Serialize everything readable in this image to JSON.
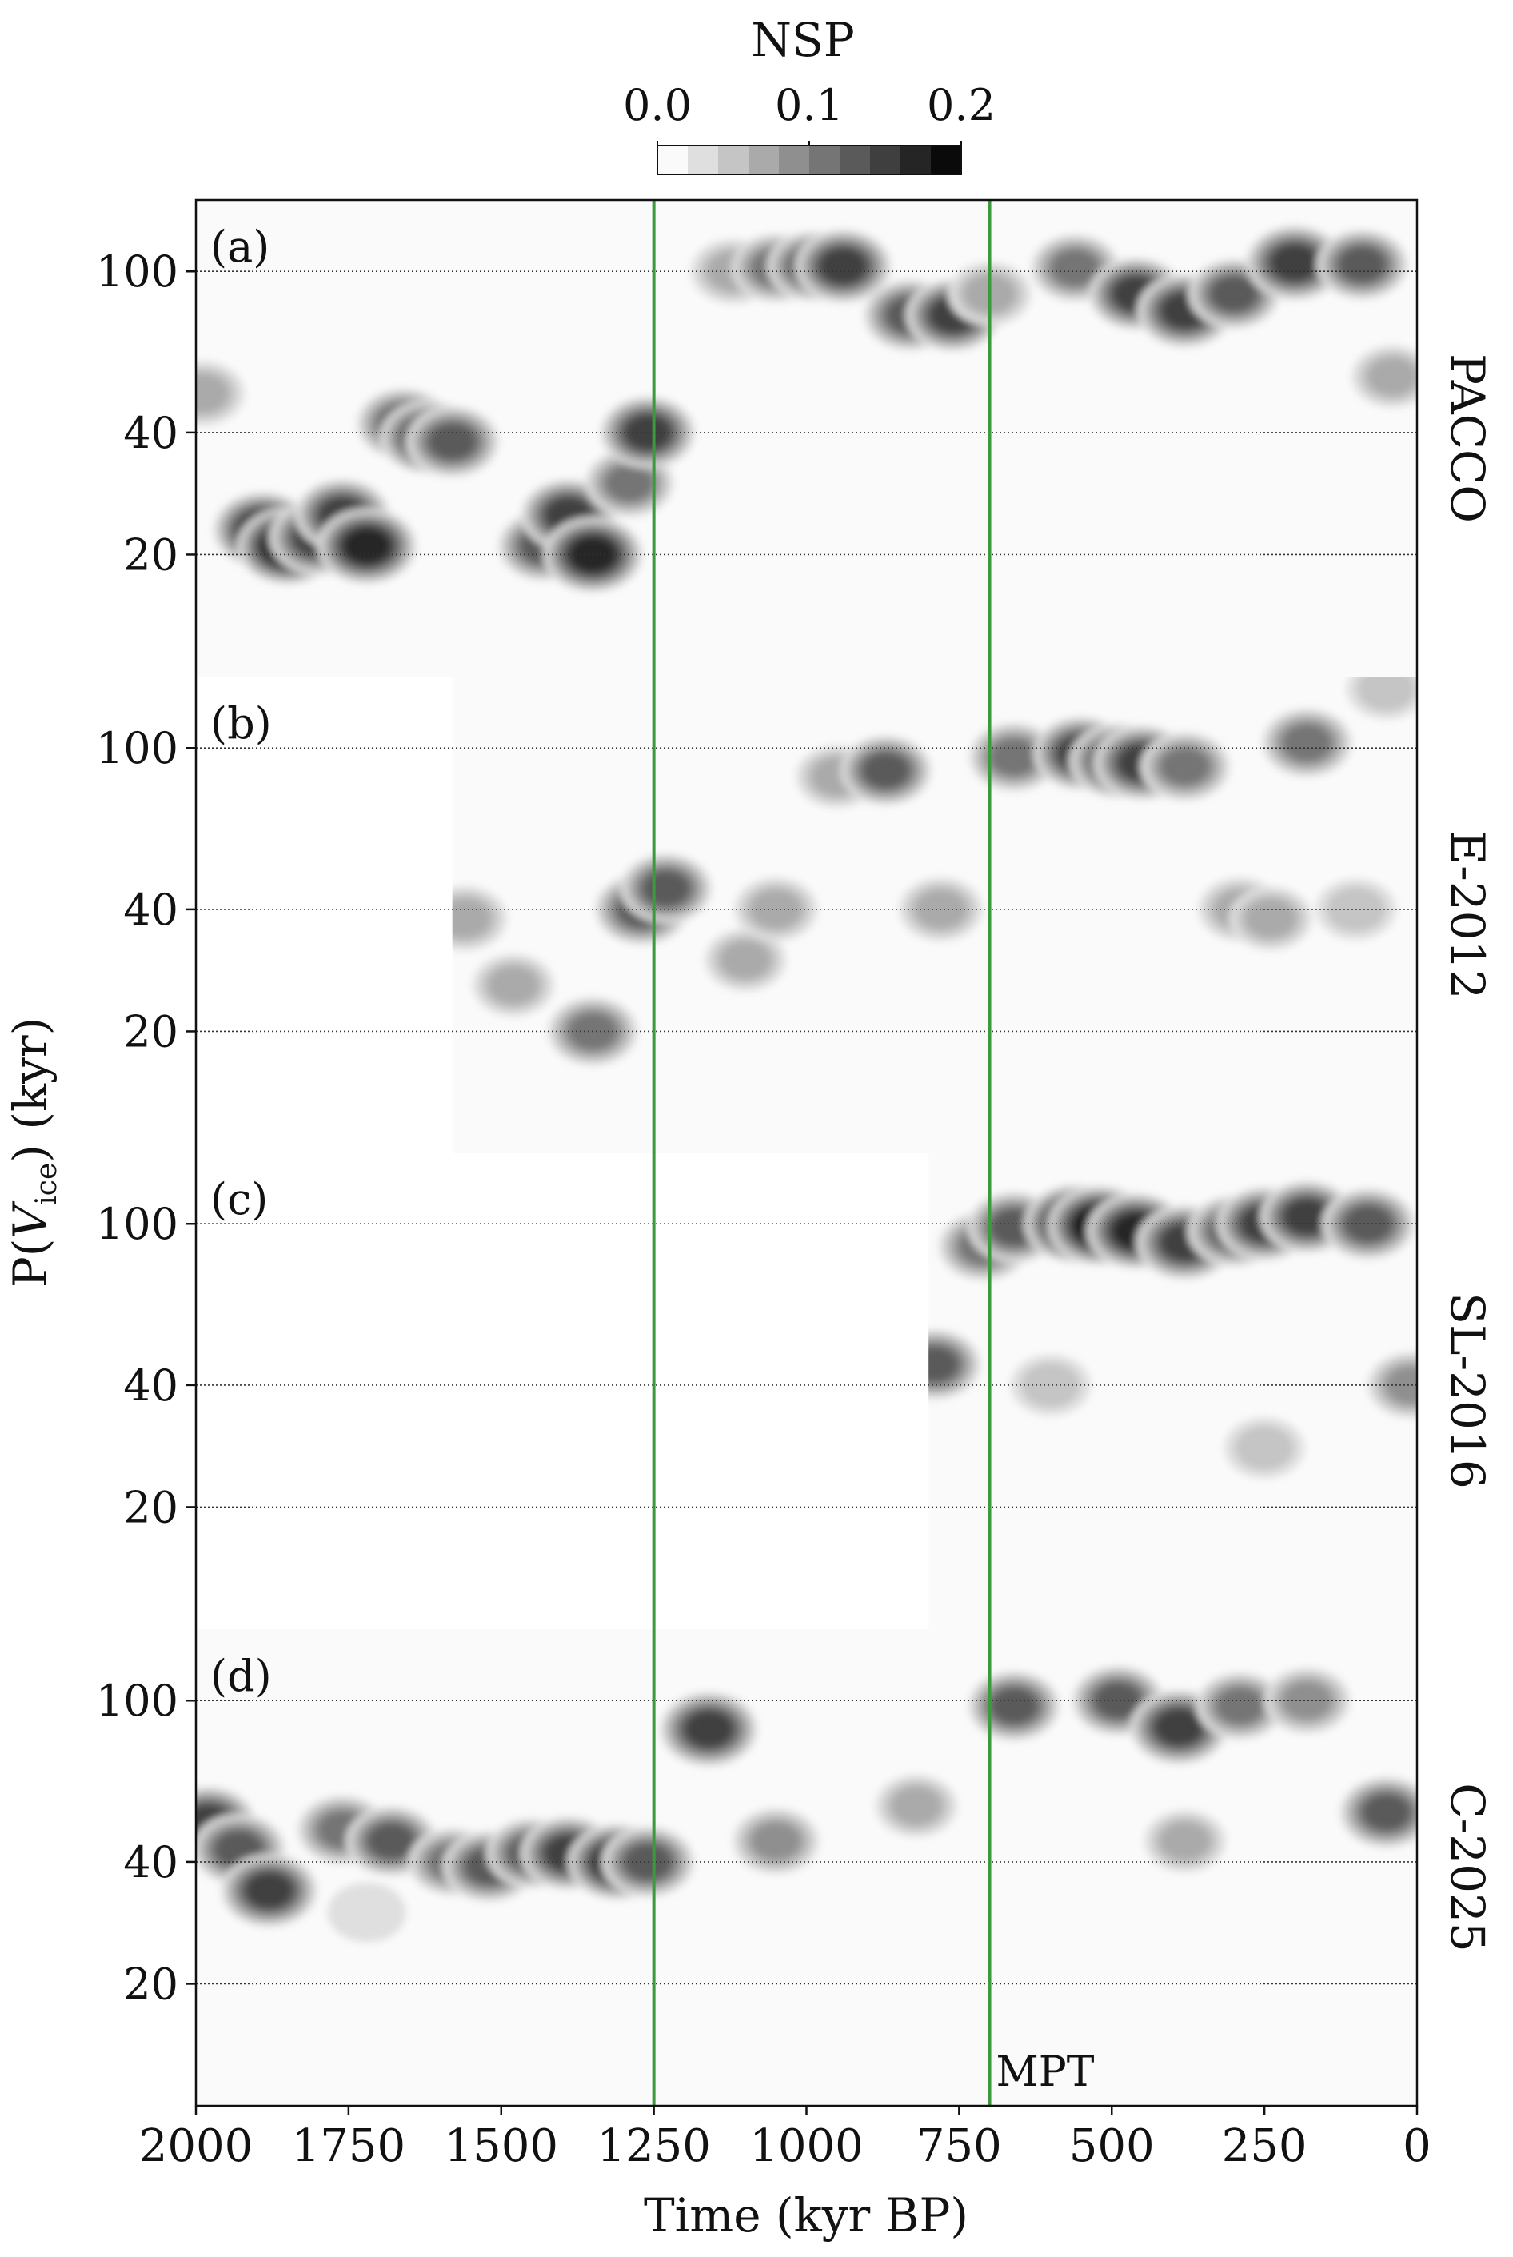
{
  "chart_data": {
    "type": "heatmap",
    "colorbar": {
      "title": "NSP",
      "tick_labels": [
        "0.0",
        "0.1",
        "0.2"
      ],
      "ticks": [
        0.0,
        0.1,
        0.2
      ],
      "range": [
        0.0,
        0.2
      ],
      "levels": 10
    },
    "xlabel": "Time (kyr BP)",
    "xlim": [
      2000,
      0
    ],
    "x_ticks": [
      2000,
      1750,
      1500,
      1250,
      1000,
      750,
      500,
      250,
      0
    ],
    "x_tick_labels": [
      "2000",
      "1750",
      "1500",
      "1250",
      "1000",
      "750",
      "500",
      "250",
      "0"
    ],
    "ylabel_parts": {
      "pre": "P(",
      "var": "V",
      "sub": "ice",
      "post": ") (kyr)"
    },
    "y_scale": "log",
    "ylim": [
      10,
      150
    ],
    "y_ticks": [
      20,
      40,
      100
    ],
    "y_tick_labels": [
      "20",
      "40",
      "100"
    ],
    "grid": "horizontal dotted at 20, 40, 100",
    "vlines": [
      {
        "x": 1250,
        "color": "#3c9a3c"
      },
      {
        "x": 700,
        "color": "#3c9a3c",
        "label": "MPT"
      }
    ],
    "panels": [
      {
        "tag": "(a)",
        "name": "PACCO",
        "x_range": [
          2000,
          0
        ],
        "blobs": [
          {
            "t": 1890,
            "p": 23,
            "v": 0.17
          },
          {
            "t": 1850,
            "p": 21,
            "v": 0.18
          },
          {
            "t": 1800,
            "p": 22,
            "v": 0.16
          },
          {
            "t": 1760,
            "p": 25,
            "v": 0.14
          },
          {
            "t": 1720,
            "p": 21,
            "v": 0.17
          },
          {
            "t": 1660,
            "p": 42,
            "v": 0.13
          },
          {
            "t": 1620,
            "p": 39,
            "v": 0.15
          },
          {
            "t": 1580,
            "p": 38,
            "v": 0.13
          },
          {
            "t": 1430,
            "p": 21,
            "v": 0.12
          },
          {
            "t": 1390,
            "p": 25,
            "v": 0.14
          },
          {
            "t": 1350,
            "p": 20,
            "v": 0.17
          },
          {
            "t": 1290,
            "p": 30,
            "v": 0.1
          },
          {
            "t": 1260,
            "p": 40,
            "v": 0.14
          },
          {
            "t": 1120,
            "p": 100,
            "v": 0.08
          },
          {
            "t": 1050,
            "p": 102,
            "v": 0.11
          },
          {
            "t": 990,
            "p": 103,
            "v": 0.12
          },
          {
            "t": 940,
            "p": 103,
            "v": 0.15
          },
          {
            "t": 830,
            "p": 78,
            "v": 0.13
          },
          {
            "t": 760,
            "p": 78,
            "v": 0.14
          },
          {
            "t": 700,
            "p": 88,
            "v": 0.07
          },
          {
            "t": 560,
            "p": 102,
            "v": 0.1
          },
          {
            "t": 460,
            "p": 88,
            "v": 0.14
          },
          {
            "t": 380,
            "p": 80,
            "v": 0.15
          },
          {
            "t": 300,
            "p": 88,
            "v": 0.12
          },
          {
            "t": 200,
            "p": 105,
            "v": 0.16
          },
          {
            "t": 90,
            "p": 104,
            "v": 0.12
          },
          {
            "t": 40,
            "p": 55,
            "v": 0.06
          },
          {
            "t": 1990,
            "p": 50,
            "v": 0.08
          }
        ]
      },
      {
        "tag": "(b)",
        "name": "E-2012",
        "x_range": [
          1580,
          0
        ],
        "blobs": [
          {
            "t": 1560,
            "p": 38,
            "v": 0.08
          },
          {
            "t": 1480,
            "p": 26,
            "v": 0.06
          },
          {
            "t": 1350,
            "p": 20,
            "v": 0.11
          },
          {
            "t": 1270,
            "p": 40,
            "v": 0.13
          },
          {
            "t": 1230,
            "p": 45,
            "v": 0.12
          },
          {
            "t": 1100,
            "p": 30,
            "v": 0.06
          },
          {
            "t": 1050,
            "p": 40,
            "v": 0.07
          },
          {
            "t": 950,
            "p": 85,
            "v": 0.06
          },
          {
            "t": 870,
            "p": 88,
            "v": 0.12
          },
          {
            "t": 780,
            "p": 40,
            "v": 0.07
          },
          {
            "t": 660,
            "p": 95,
            "v": 0.11
          },
          {
            "t": 550,
            "p": 97,
            "v": 0.15
          },
          {
            "t": 490,
            "p": 93,
            "v": 0.16
          },
          {
            "t": 450,
            "p": 92,
            "v": 0.16
          },
          {
            "t": 380,
            "p": 90,
            "v": 0.11
          },
          {
            "t": 290,
            "p": 40,
            "v": 0.07
          },
          {
            "t": 240,
            "p": 38,
            "v": 0.07
          },
          {
            "t": 180,
            "p": 103,
            "v": 0.11
          },
          {
            "t": 100,
            "p": 40,
            "v": 0.05
          },
          {
            "t": 50,
            "p": 140,
            "v": 0.05
          }
        ]
      },
      {
        "tag": "(c)",
        "name": "SL-2016",
        "x_range": [
          800,
          0
        ],
        "blobs": [
          {
            "t": 790,
            "p": 45,
            "v": 0.12
          },
          {
            "t": 710,
            "p": 88,
            "v": 0.11
          },
          {
            "t": 660,
            "p": 98,
            "v": 0.13
          },
          {
            "t": 560,
            "p": 100,
            "v": 0.19
          },
          {
            "t": 520,
            "p": 99,
            "v": 0.2
          },
          {
            "t": 460,
            "p": 96,
            "v": 0.17
          },
          {
            "t": 380,
            "p": 90,
            "v": 0.16
          },
          {
            "t": 300,
            "p": 96,
            "v": 0.13
          },
          {
            "t": 250,
            "p": 100,
            "v": 0.15
          },
          {
            "t": 180,
            "p": 104,
            "v": 0.14
          },
          {
            "t": 80,
            "p": 100,
            "v": 0.13
          },
          {
            "t": 10,
            "p": 40,
            "v": 0.09
          },
          {
            "t": 600,
            "p": 40,
            "v": 0.05
          },
          {
            "t": 250,
            "p": 28,
            "v": 0.05
          }
        ]
      },
      {
        "tag": "(d)",
        "name": "C-2025",
        "x_range": [
          2000,
          0
        ],
        "blobs": [
          {
            "t": 1980,
            "p": 50,
            "v": 0.14
          },
          {
            "t": 1930,
            "p": 43,
            "v": 0.13
          },
          {
            "t": 1880,
            "p": 34,
            "v": 0.15
          },
          {
            "t": 1760,
            "p": 48,
            "v": 0.11
          },
          {
            "t": 1680,
            "p": 45,
            "v": 0.12
          },
          {
            "t": 1580,
            "p": 40,
            "v": 0.1
          },
          {
            "t": 1520,
            "p": 39,
            "v": 0.13
          },
          {
            "t": 1450,
            "p": 42,
            "v": 0.12
          },
          {
            "t": 1390,
            "p": 42,
            "v": 0.15
          },
          {
            "t": 1310,
            "p": 40,
            "v": 0.17
          },
          {
            "t": 1260,
            "p": 40,
            "v": 0.13
          },
          {
            "t": 1160,
            "p": 85,
            "v": 0.16
          },
          {
            "t": 1050,
            "p": 45,
            "v": 0.09
          },
          {
            "t": 820,
            "p": 55,
            "v": 0.06
          },
          {
            "t": 660,
            "p": 97,
            "v": 0.12
          },
          {
            "t": 490,
            "p": 100,
            "v": 0.12
          },
          {
            "t": 390,
            "p": 86,
            "v": 0.16
          },
          {
            "t": 290,
            "p": 97,
            "v": 0.1
          },
          {
            "t": 180,
            "p": 100,
            "v": 0.09
          },
          {
            "t": 50,
            "p": 53,
            "v": 0.13
          },
          {
            "t": 380,
            "p": 45,
            "v": 0.06
          },
          {
            "t": 1720,
            "p": 30,
            "v": 0.04
          }
        ]
      }
    ]
  }
}
